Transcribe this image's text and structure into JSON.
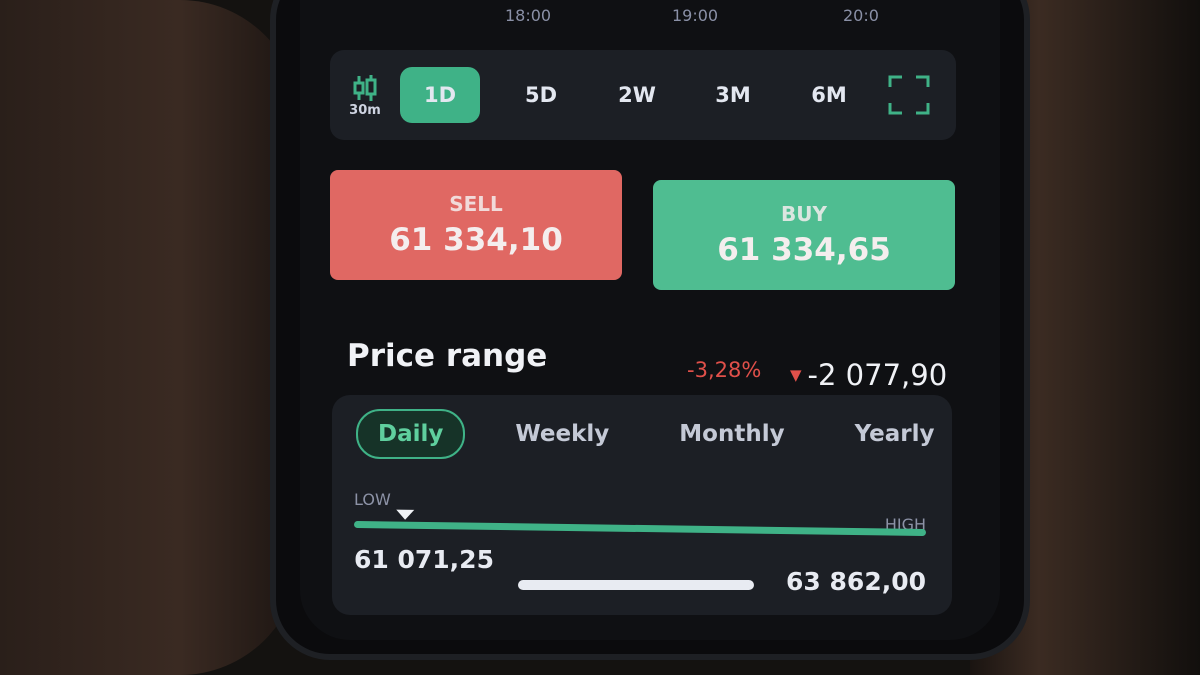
{
  "chart_axis": {
    "times": [
      "18:00",
      "19:00",
      "20:0"
    ]
  },
  "toolbar": {
    "interval": "30m",
    "ranges": [
      "1D",
      "5D",
      "2W",
      "3M",
      "6M"
    ],
    "active": "1D"
  },
  "trade": {
    "sell_label": "SELL",
    "sell_price": "61 334,10",
    "buy_label": "BUY",
    "buy_price": "61 334,65"
  },
  "price_range": {
    "title": "Price range",
    "change_pct": "-3,28%",
    "change_value": "-2 077,90",
    "tabs": [
      "Daily",
      "Weekly",
      "Monthly",
      "Yearly"
    ],
    "active_tab": "Daily",
    "low_label": "LOW",
    "high_label": "HIGH",
    "low_value": "61 071,25",
    "high_value": "63 862,00",
    "marker_fraction": 0.09
  },
  "colors": {
    "accent": "#3fb287",
    "sell": "#e06863",
    "buy": "#4fbd91",
    "negative": "#e0504a"
  }
}
